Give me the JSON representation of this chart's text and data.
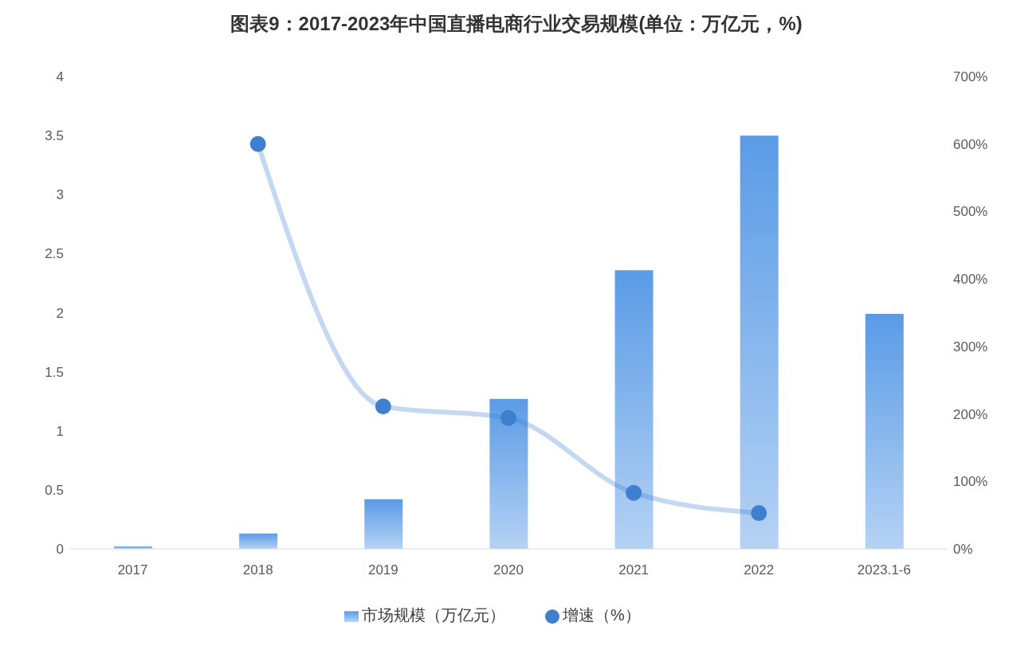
{
  "chart_data": {
    "type": "bar",
    "title": "图表9：2017-2023年中国直播电商行业交易规模(单位：万亿元，%)",
    "categories": [
      "2017",
      "2018",
      "2019",
      "2020",
      "2021",
      "2022",
      "2023.1-6"
    ],
    "series": [
      {
        "name": "市场规模（万亿元）",
        "color": "#5a9be6",
        "values": [
          0.02,
          0.13,
          0.42,
          1.27,
          2.36,
          3.5,
          1.99
        ]
      },
      {
        "name": "增速（%）",
        "type": "line",
        "axis": "y2",
        "color": "#3f7fcf",
        "values": [
          null,
          600,
          211,
          194,
          83,
          53,
          null
        ]
      }
    ],
    "ylim": [
      0,
      4
    ],
    "yticks": [
      0,
      0.5,
      1,
      1.5,
      2,
      2.5,
      3,
      3.5,
      4
    ],
    "y2lim": [
      0,
      700
    ],
    "y2ticks": [
      {
        "value": 0,
        "label": "0%"
      },
      {
        "value": 100,
        "label": "100%"
      },
      {
        "value": 200,
        "label": "200%"
      },
      {
        "value": 300,
        "label": "300%"
      },
      {
        "value": 400,
        "label": "400%"
      },
      {
        "value": 500,
        "label": "500%"
      },
      {
        "value": 600,
        "label": "600%"
      },
      {
        "value": 700,
        "label": "700%"
      }
    ],
    "grid": false,
    "legend": "bottom",
    "marker": "circle",
    "line_style": "solid"
  }
}
